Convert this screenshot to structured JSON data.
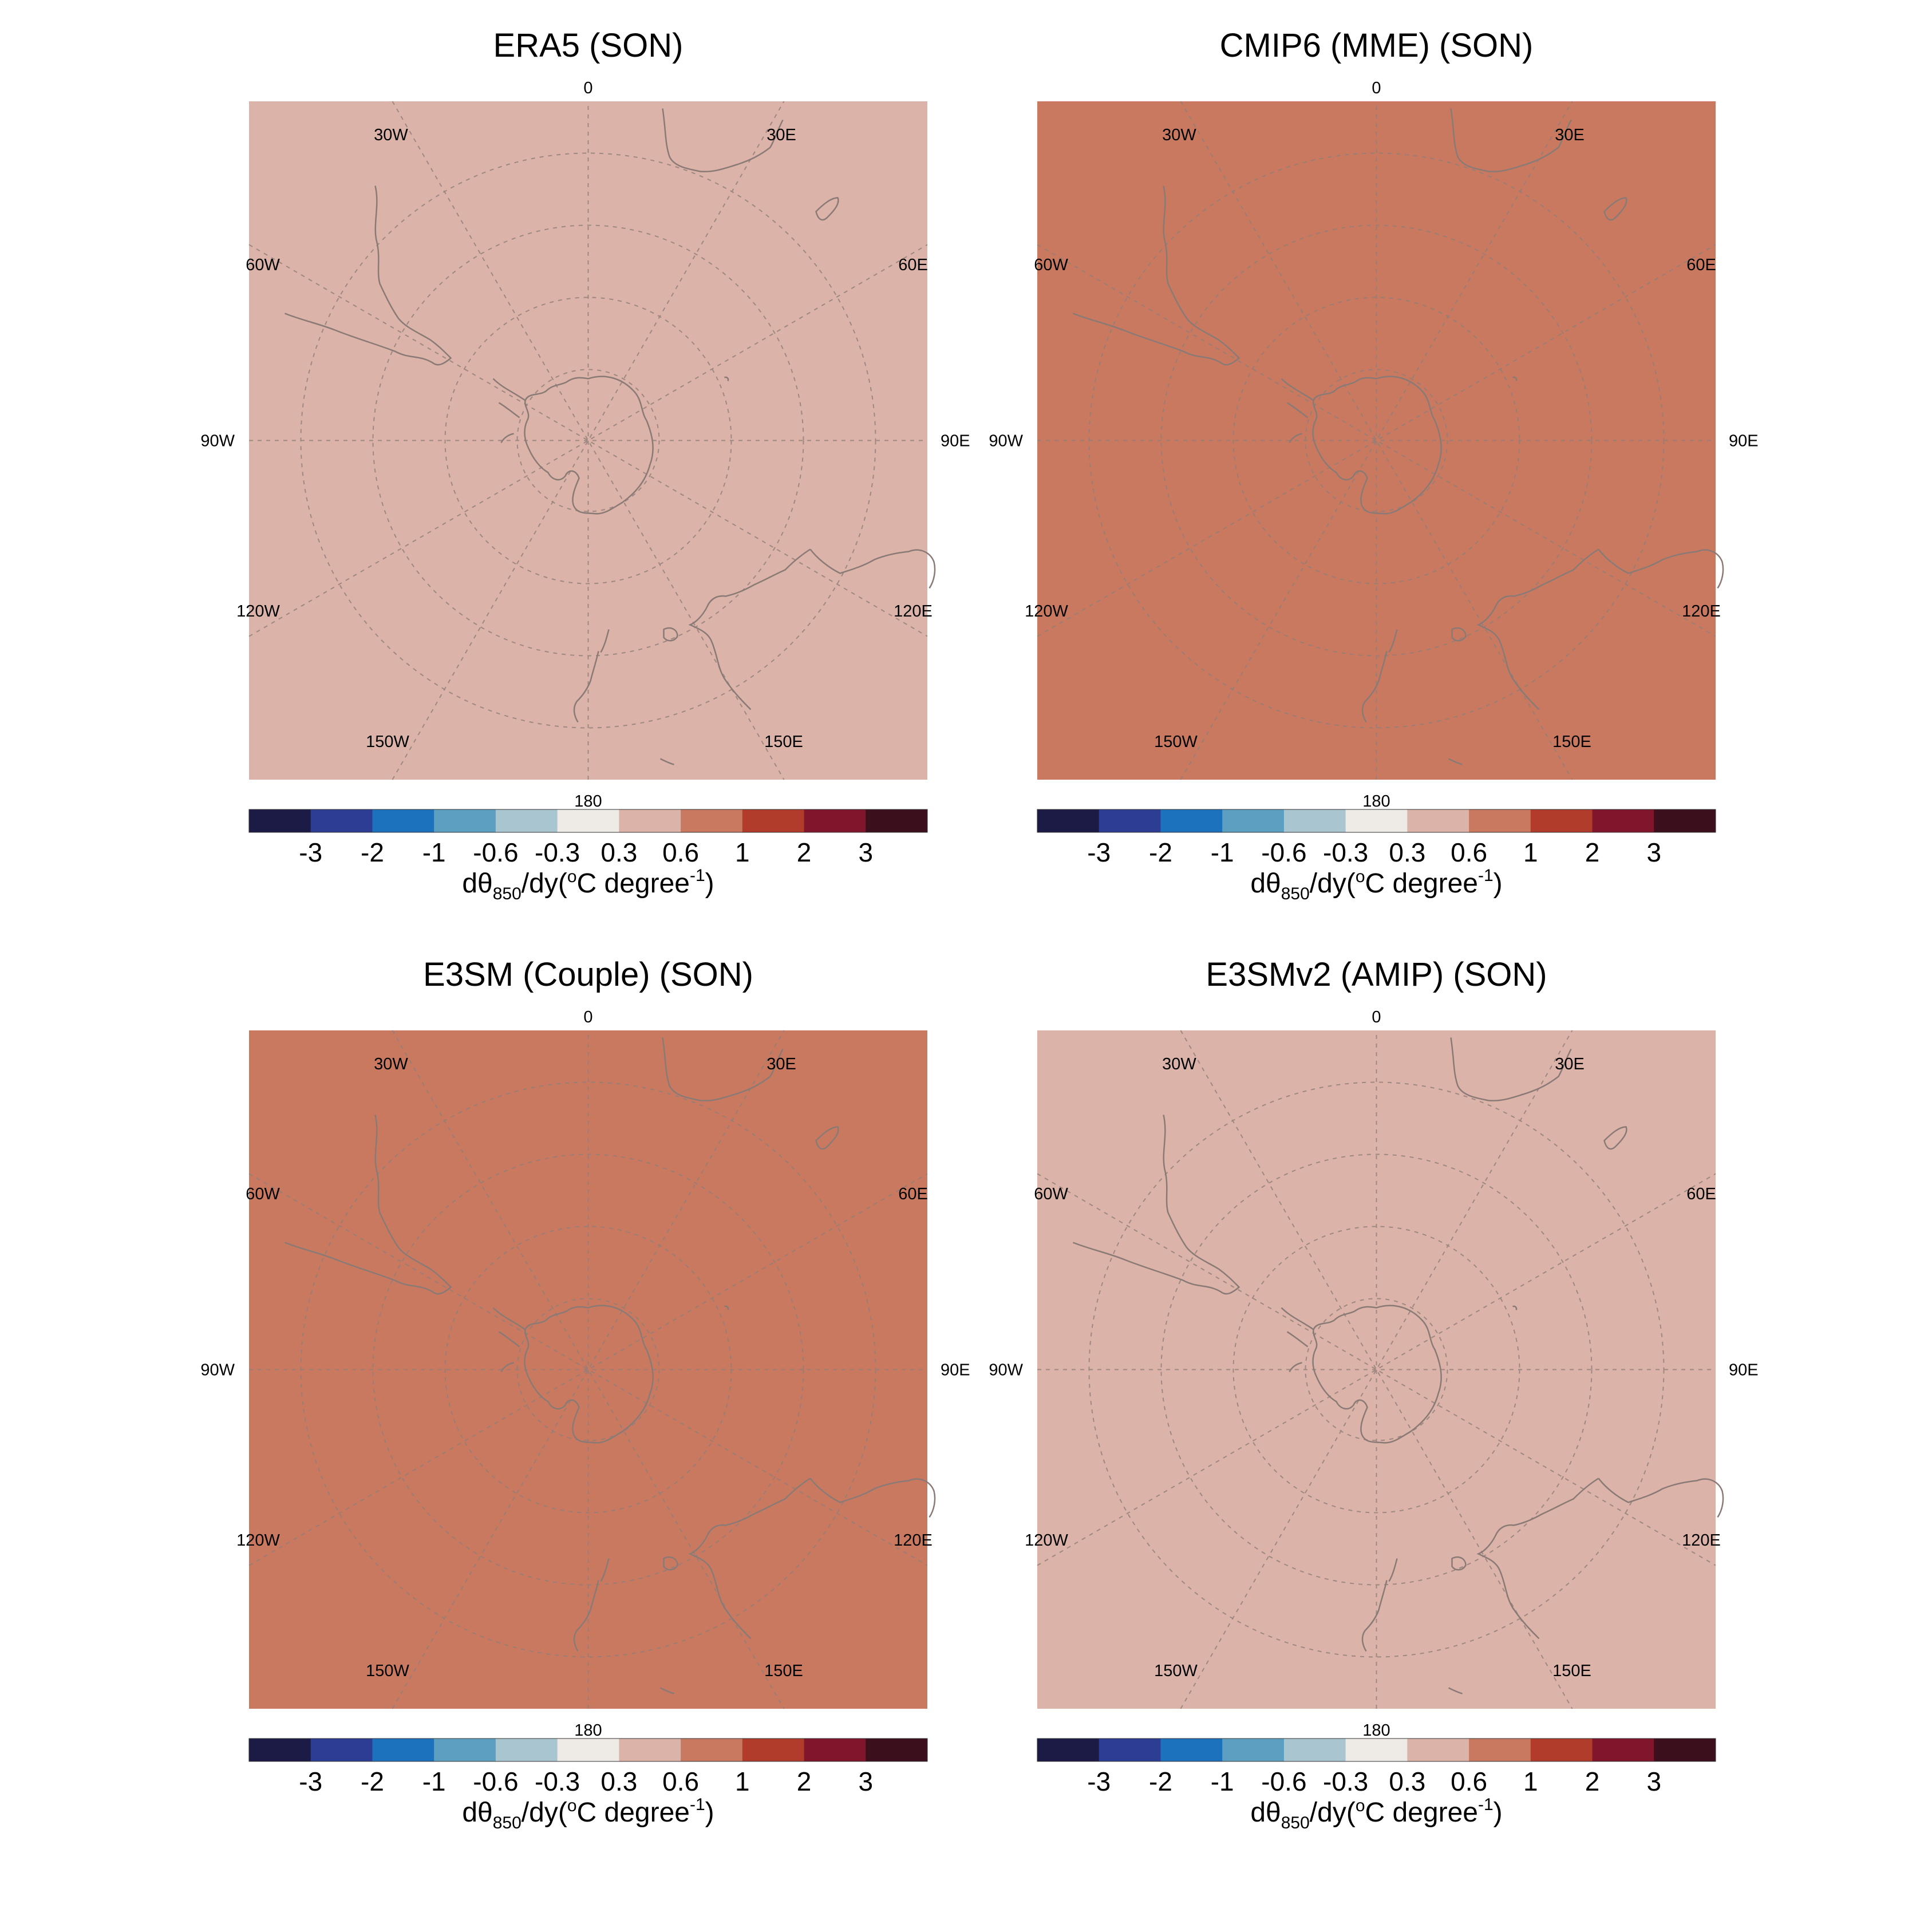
{
  "figure": {
    "panels": [
      {
        "title": "ERA5  (SON)",
        "fill_color": "#dbb3a8",
        "fill_bin": "0.3 to 0.6"
      },
      {
        "title": "CMIP6 (MME)  (SON)",
        "fill_color": "#c9795f",
        "fill_bin": "0.6 to 1"
      },
      {
        "title": "E3SM (Couple)  (SON)",
        "fill_color": "#c9795f",
        "fill_bin": "0.6 to 1"
      },
      {
        "title": "E3SMv2 (AMIP)  (SON)",
        "fill_color": "#dbb3a8",
        "fill_bin": "0.3 to 0.6"
      }
    ],
    "longitude_labels": {
      "top": "0",
      "bottom": "180",
      "left": "90W",
      "right": "90E",
      "upper_left_30": "30W",
      "upper_right_30": "30E",
      "upper_left_60": "60W",
      "upper_right_60": "60E",
      "lower_left_120": "120W",
      "lower_right_120": "120E",
      "lower_left_150": "150W",
      "lower_right_150": "150E"
    },
    "colorbar": {
      "tick_labels": [
        "-3",
        "-2",
        "-1",
        "-0.6",
        "-0.3",
        "0.3",
        "0.6",
        "1",
        "2",
        "3"
      ],
      "colors": [
        "#1c1b45",
        "#2d3d94",
        "#1d72be",
        "#5d9fc0",
        "#a9c5cf",
        "#eeebe7",
        "#dbb3a8",
        "#c9795f",
        "#b13c2b",
        "#80152b",
        "#3c0f1c"
      ],
      "label": {
        "prefix": "dθ",
        "subscript": "850",
        "middle": "/dy(",
        "degree": "o",
        "unit": "C degree",
        "superscript": "-1",
        "suffix": ")"
      }
    },
    "map": {
      "projection": "south polar stereographic",
      "grid_style": "dashed",
      "coastline_color": "#8a7a76"
    }
  }
}
